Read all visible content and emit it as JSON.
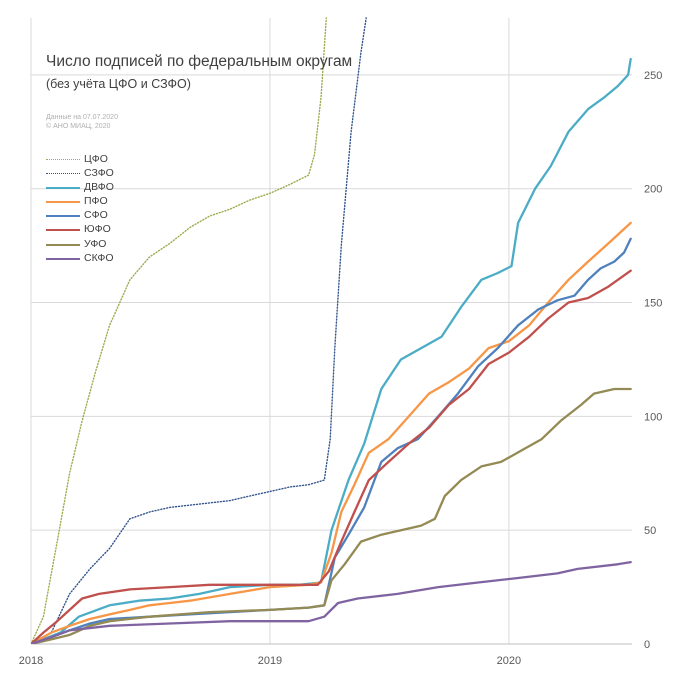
{
  "chart_data": {
    "type": "line",
    "title": "Число подписей по федеральным округам",
    "subtitle": "(без учёта ЦФО и СЗФО)",
    "credits": [
      "Данные на 07.07.2020",
      "© АНО МИАЦ, 2020"
    ],
    "xlim": [
      "2018-01-01",
      "2020-07-07"
    ],
    "ylim": [
      0,
      275
    ],
    "y_axis_position": "right",
    "x_ticks": [
      {
        "date": "2018-01-01",
        "label": "2018"
      },
      {
        "date": "2019-01-01",
        "label": "2019"
      },
      {
        "date": "2020-01-01",
        "label": "2020"
      }
    ],
    "y_ticks": [
      0,
      50,
      100,
      150,
      200,
      250
    ],
    "grid": true,
    "legend_position": "upper-left",
    "series": [
      {
        "name": "ЦФО",
        "color": "#9faa4e",
        "style": "dotted",
        "points": [
          [
            "2018-01-01",
            0
          ],
          [
            "2018-01-20",
            12
          ],
          [
            "2018-02-10",
            45
          ],
          [
            "2018-03-01",
            75
          ],
          [
            "2018-03-20",
            98
          ],
          [
            "2018-04-10",
            120
          ],
          [
            "2018-05-01",
            140
          ],
          [
            "2018-06-01",
            160
          ],
          [
            "2018-07-01",
            170
          ],
          [
            "2018-08-01",
            176
          ],
          [
            "2018-09-01",
            183
          ],
          [
            "2018-10-01",
            188
          ],
          [
            "2018-11-01",
            191
          ],
          [
            "2018-12-01",
            195
          ],
          [
            "2019-01-01",
            198
          ],
          [
            "2019-02-01",
            202
          ],
          [
            "2019-03-01",
            206
          ],
          [
            "2019-03-10",
            215
          ],
          [
            "2019-03-20",
            240
          ],
          [
            "2019-03-28",
            275
          ]
        ]
      },
      {
        "name": "СЗФО",
        "color": "#33558c",
        "style": "dotted",
        "points": [
          [
            "2018-01-01",
            0
          ],
          [
            "2018-02-01",
            5
          ],
          [
            "2018-03-01",
            22
          ],
          [
            "2018-04-01",
            33
          ],
          [
            "2018-05-01",
            42
          ],
          [
            "2018-06-01",
            55
          ],
          [
            "2018-07-01",
            58
          ],
          [
            "2018-08-01",
            60
          ],
          [
            "2018-09-01",
            61
          ],
          [
            "2018-10-01",
            62
          ],
          [
            "2018-11-01",
            63
          ],
          [
            "2018-12-01",
            65
          ],
          [
            "2019-01-01",
            67
          ],
          [
            "2019-02-01",
            69
          ],
          [
            "2019-03-01",
            70
          ],
          [
            "2019-03-25",
            72
          ],
          [
            "2019-04-03",
            90
          ],
          [
            "2019-04-10",
            130
          ],
          [
            "2019-04-20",
            175
          ],
          [
            "2019-05-05",
            225
          ],
          [
            "2019-05-20",
            260
          ],
          [
            "2019-05-28",
            275
          ]
        ]
      },
      {
        "name": "ДВФО",
        "color": "#4bacc6",
        "style": "solid",
        "points": [
          [
            "2018-01-01",
            0
          ],
          [
            "2018-02-15",
            5
          ],
          [
            "2018-03-15",
            12
          ],
          [
            "2018-05-01",
            17
          ],
          [
            "2018-06-15",
            19
          ],
          [
            "2018-08-01",
            20
          ],
          [
            "2018-09-15",
            22
          ],
          [
            "2018-11-01",
            25
          ],
          [
            "2019-01-01",
            26
          ],
          [
            "2019-02-15",
            26
          ],
          [
            "2019-03-20",
            27
          ],
          [
            "2019-04-05",
            50
          ],
          [
            "2019-05-01",
            72
          ],
          [
            "2019-05-25",
            88
          ],
          [
            "2019-06-20",
            112
          ],
          [
            "2019-07-20",
            125
          ],
          [
            "2019-08-20",
            130
          ],
          [
            "2019-09-20",
            135
          ],
          [
            "2019-10-20",
            148
          ],
          [
            "2019-11-20",
            160
          ],
          [
            "2019-12-15",
            163
          ],
          [
            "2020-01-05",
            166
          ],
          [
            "2020-01-15",
            185
          ],
          [
            "2020-02-10",
            200
          ],
          [
            "2020-03-05",
            210
          ],
          [
            "2020-04-01",
            225
          ],
          [
            "2020-05-01",
            235
          ],
          [
            "2020-05-25",
            240
          ],
          [
            "2020-06-15",
            245
          ],
          [
            "2020-07-01",
            250
          ],
          [
            "2020-07-05",
            257
          ]
        ]
      },
      {
        "name": "ПФО",
        "color": "#f79646",
        "style": "solid",
        "points": [
          [
            "2018-01-01",
            0
          ],
          [
            "2018-02-01",
            5
          ],
          [
            "2018-03-01",
            8
          ],
          [
            "2018-04-01",
            11
          ],
          [
            "2018-05-01",
            13
          ],
          [
            "2018-06-01",
            15
          ],
          [
            "2018-07-01",
            17
          ],
          [
            "2018-08-01",
            18
          ],
          [
            "2018-09-01",
            19
          ],
          [
            "2018-11-01",
            22
          ],
          [
            "2019-01-01",
            25
          ],
          [
            "2019-03-01",
            26
          ],
          [
            "2019-03-20",
            27
          ],
          [
            "2019-04-05",
            40
          ],
          [
            "2019-04-20",
            58
          ],
          [
            "2019-05-10",
            70
          ],
          [
            "2019-06-01",
            84
          ],
          [
            "2019-07-01",
            90
          ],
          [
            "2019-08-01",
            100
          ],
          [
            "2019-09-01",
            110
          ],
          [
            "2019-10-01",
            115
          ],
          [
            "2019-11-01",
            121
          ],
          [
            "2019-12-01",
            130
          ],
          [
            "2020-01-01",
            133
          ],
          [
            "2020-02-01",
            140
          ],
          [
            "2020-03-01",
            150
          ],
          [
            "2020-04-01",
            160
          ],
          [
            "2020-05-01",
            168
          ],
          [
            "2020-06-01",
            176
          ],
          [
            "2020-07-05",
            185
          ]
        ]
      },
      {
        "name": "СФО",
        "color": "#4f81bd",
        "style": "solid",
        "points": [
          [
            "2018-01-01",
            0
          ],
          [
            "2018-02-01",
            3
          ],
          [
            "2018-03-01",
            6
          ],
          [
            "2018-04-01",
            9
          ],
          [
            "2018-05-01",
            11
          ],
          [
            "2018-07-01",
            12
          ],
          [
            "2018-09-01",
            13
          ],
          [
            "2018-11-01",
            14
          ],
          [
            "2019-01-01",
            15
          ],
          [
            "2019-03-01",
            16
          ],
          [
            "2019-03-25",
            17
          ],
          [
            "2019-04-10",
            38
          ],
          [
            "2019-05-01",
            48
          ],
          [
            "2019-05-25",
            60
          ],
          [
            "2019-06-20",
            80
          ],
          [
            "2019-07-15",
            86
          ],
          [
            "2019-08-15",
            90
          ],
          [
            "2019-09-15",
            100
          ],
          [
            "2019-10-15",
            110
          ],
          [
            "2019-11-15",
            122
          ],
          [
            "2019-12-15",
            130
          ],
          [
            "2020-01-15",
            140
          ],
          [
            "2020-02-15",
            147
          ],
          [
            "2020-03-15",
            151
          ],
          [
            "2020-04-10",
            153
          ],
          [
            "2020-05-01",
            160
          ],
          [
            "2020-05-20",
            165
          ],
          [
            "2020-06-10",
            168
          ],
          [
            "2020-06-25",
            172
          ],
          [
            "2020-07-05",
            178
          ]
        ]
      },
      {
        "name": "ЮФО",
        "color": "#c0504d",
        "style": "solid",
        "points": [
          [
            "2018-01-01",
            0
          ],
          [
            "2018-01-20",
            5
          ],
          [
            "2018-02-10",
            10
          ],
          [
            "2018-03-01",
            15
          ],
          [
            "2018-03-20",
            20
          ],
          [
            "2018-04-15",
            22
          ],
          [
            "2018-06-01",
            24
          ],
          [
            "2018-08-01",
            25
          ],
          [
            "2018-10-01",
            26
          ],
          [
            "2018-12-01",
            26
          ],
          [
            "2019-03-15",
            26
          ],
          [
            "2019-04-01",
            32
          ],
          [
            "2019-04-20",
            45
          ],
          [
            "2019-05-10",
            58
          ],
          [
            "2019-06-01",
            72
          ],
          [
            "2019-07-01",
            80
          ],
          [
            "2019-08-01",
            88
          ],
          [
            "2019-09-01",
            95
          ],
          [
            "2019-10-01",
            105
          ],
          [
            "2019-11-01",
            112
          ],
          [
            "2019-12-01",
            123
          ],
          [
            "2020-01-01",
            128
          ],
          [
            "2020-02-01",
            135
          ],
          [
            "2020-03-01",
            143
          ],
          [
            "2020-04-01",
            150
          ],
          [
            "2020-05-01",
            152
          ],
          [
            "2020-06-01",
            157
          ],
          [
            "2020-07-05",
            164
          ]
        ]
      },
      {
        "name": "УФО",
        "color": "#948a54",
        "style": "solid",
        "points": [
          [
            "2018-01-01",
            0
          ],
          [
            "2018-02-01",
            2
          ],
          [
            "2018-03-01",
            4
          ],
          [
            "2018-04-01",
            8
          ],
          [
            "2018-05-01",
            10
          ],
          [
            "2018-07-01",
            12
          ],
          [
            "2018-10-01",
            14
          ],
          [
            "2019-01-01",
            15
          ],
          [
            "2019-03-01",
            16
          ],
          [
            "2019-03-25",
            17
          ],
          [
            "2019-04-05",
            28
          ],
          [
            "2019-04-25",
            35
          ],
          [
            "2019-05-20",
            45
          ],
          [
            "2019-06-20",
            48
          ],
          [
            "2019-07-20",
            50
          ],
          [
            "2019-08-20",
            52
          ],
          [
            "2019-09-10",
            55
          ],
          [
            "2019-09-25",
            65
          ],
          [
            "2019-10-20",
            72
          ],
          [
            "2019-11-20",
            78
          ],
          [
            "2019-12-20",
            80
          ],
          [
            "2020-01-20",
            85
          ],
          [
            "2020-02-20",
            90
          ],
          [
            "2020-03-20",
            98
          ],
          [
            "2020-04-20",
            105
          ],
          [
            "2020-05-10",
            110
          ],
          [
            "2020-06-10",
            112
          ],
          [
            "2020-07-05",
            112
          ]
        ]
      },
      {
        "name": "СКФО",
        "color": "#8064a2",
        "style": "solid",
        "points": [
          [
            "2018-01-01",
            0
          ],
          [
            "2018-02-01",
            3
          ],
          [
            "2018-03-01",
            6
          ],
          [
            "2018-05-01",
            8
          ],
          [
            "2018-08-01",
            9
          ],
          [
            "2018-11-01",
            10
          ],
          [
            "2019-03-01",
            10
          ],
          [
            "2019-03-25",
            12
          ],
          [
            "2019-04-15",
            18
          ],
          [
            "2019-05-15",
            20
          ],
          [
            "2019-07-15",
            22
          ],
          [
            "2019-09-15",
            25
          ],
          [
            "2019-11-15",
            27
          ],
          [
            "2020-01-15",
            29
          ],
          [
            "2020-03-15",
            31
          ],
          [
            "2020-04-15",
            33
          ],
          [
            "2020-06-15",
            35
          ],
          [
            "2020-07-05",
            36
          ]
        ]
      }
    ]
  }
}
